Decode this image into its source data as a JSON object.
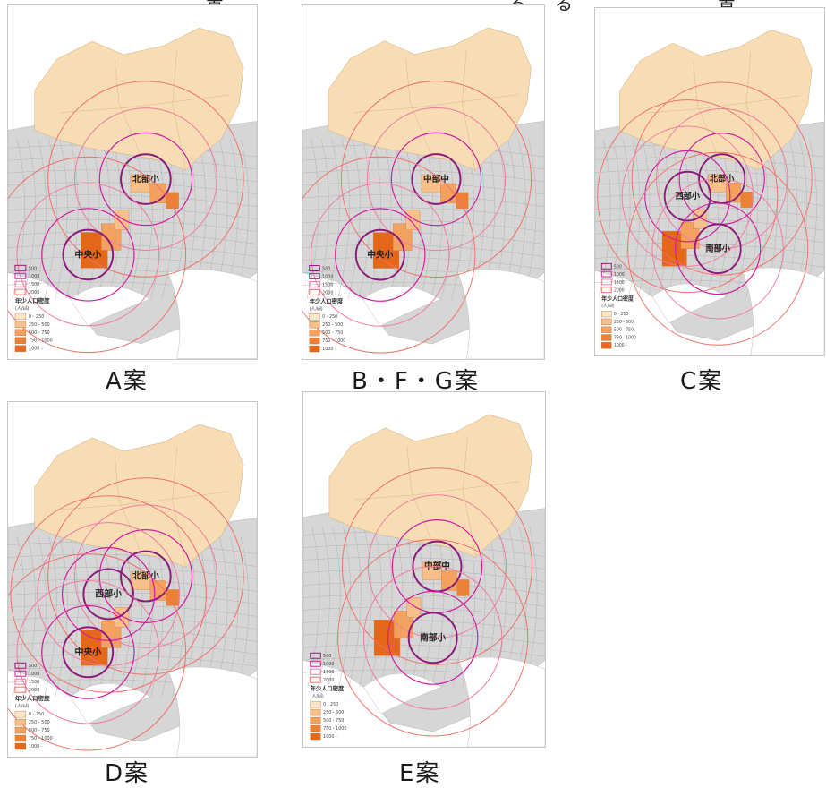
{
  "colors": {
    "north": "#f8ddb4",
    "gray": "#d6d6d6",
    "inner": "#8b1a7a",
    "mid": "#d41aa0",
    "outer1": "#f07aa0",
    "outer2": "#f0706a",
    "or1": "#fbe6c8",
    "or2": "#f7c08a",
    "or3": "#f3a15e",
    "or4": "#ec8136",
    "or5": "#e5671a"
  },
  "top_banner": "置　　　　　　　　　　　　る　る　　　　　　置",
  "legend": {
    "title": "年少人口密度",
    "unit": "(人/㎢)",
    "rings": [
      "500",
      "1000",
      "1500",
      "2000"
    ],
    "classes": [
      "0 - 250",
      "250 - 500",
      "500 - 750",
      "750 - 1000",
      "1000 -"
    ]
  },
  "panels": [
    {
      "caption": "A案",
      "schools": [
        {
          "name": "北部小",
          "ring": "north"
        },
        {
          "name": "中央小",
          "ring": "south"
        }
      ]
    },
    {
      "caption": "B・F・G案",
      "schools": [
        {
          "name": "中部中",
          "ring": "north"
        },
        {
          "name": "中央小",
          "ring": "south"
        }
      ]
    },
    {
      "caption": "C案",
      "schools": [
        {
          "name": "北部小",
          "ring": "north"
        },
        {
          "name": "西部小",
          "ring": "west"
        },
        {
          "name": "南部小",
          "ring": "south2"
        }
      ]
    },
    {
      "caption": "D案",
      "schools": [
        {
          "name": "北部小",
          "ring": "north"
        },
        {
          "name": "西部小",
          "ring": "west"
        },
        {
          "name": "中央小",
          "ring": "south"
        }
      ]
    },
    {
      "caption": "E案",
      "schools": [
        {
          "name": "中部中",
          "ring": "north"
        },
        {
          "name": "南部小",
          "ring": "south2"
        }
      ]
    }
  ]
}
